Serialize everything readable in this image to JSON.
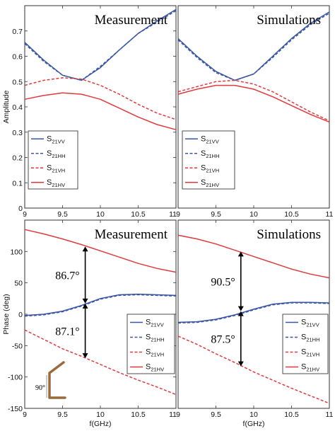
{
  "colors": {
    "blue": "#3a56a4",
    "red": "#e03a3e"
  },
  "chart_data": [
    {
      "type": "line",
      "title": "Measurement",
      "xlabel": "f(GHz)",
      "ylabel": "Amplitude",
      "xlim": [
        9,
        11
      ],
      "ylim": [
        0,
        0.8
      ],
      "xticks": [
        "9",
        "9.5",
        "10",
        "10.5",
        "11"
      ],
      "yticks": [
        "0",
        "0.1",
        "0.2",
        "0.3",
        "0.4",
        "0.5",
        "0.6",
        "0.7"
      ],
      "legend": "bottom-left",
      "series": [
        {
          "name": "S21VV",
          "base": "S",
          "sub": "21VV",
          "style": "solid",
          "color": "blue",
          "x": [
            9,
            9.25,
            9.5,
            9.75,
            10,
            10.25,
            10.5,
            10.75,
            11
          ],
          "y": [
            0.655,
            0.585,
            0.525,
            0.505,
            0.555,
            0.625,
            0.69,
            0.74,
            0.785
          ]
        },
        {
          "name": "S21HH",
          "base": "S",
          "sub": "21HH",
          "style": "dashed",
          "color": "blue",
          "x": [
            9,
            9.25,
            9.5,
            9.75,
            10,
            10.25,
            10.5,
            10.75,
            11
          ],
          "y": [
            0.65,
            0.58,
            0.525,
            0.505,
            0.56,
            0.625,
            0.69,
            0.735,
            0.78
          ]
        },
        {
          "name": "S21VH",
          "base": "S",
          "sub": "21VH",
          "style": "dashed",
          "color": "red",
          "x": [
            9,
            9.25,
            9.5,
            9.75,
            10,
            10.25,
            10.5,
            10.75,
            11
          ],
          "y": [
            0.485,
            0.505,
            0.515,
            0.51,
            0.485,
            0.45,
            0.41,
            0.375,
            0.35
          ]
        },
        {
          "name": "S21HV",
          "base": "S",
          "sub": "21HV",
          "style": "solid",
          "color": "red",
          "x": [
            9,
            9.25,
            9.5,
            9.75,
            10,
            10.25,
            10.5,
            10.75,
            11
          ],
          "y": [
            0.43,
            0.445,
            0.455,
            0.45,
            0.43,
            0.395,
            0.36,
            0.33,
            0.31
          ]
        }
      ],
      "annotations": []
    },
    {
      "type": "line",
      "title": "Simulations",
      "xlabel": "f(GHz)",
      "ylabel": "",
      "xlim": [
        9,
        11
      ],
      "ylim": [
        0,
        0.8
      ],
      "xticks": [
        "9",
        "9.5",
        "10",
        "10.5",
        "11"
      ],
      "yticks": [],
      "legend": "bottom-left",
      "series": [
        {
          "name": "S21VV",
          "base": "S",
          "sub": "21VV",
          "style": "solid",
          "color": "blue",
          "x": [
            9,
            9.25,
            9.5,
            9.75,
            10,
            10.25,
            10.5,
            10.75,
            11
          ],
          "y": [
            0.67,
            0.6,
            0.54,
            0.505,
            0.53,
            0.6,
            0.67,
            0.73,
            0.775
          ]
        },
        {
          "name": "S21HH",
          "base": "S",
          "sub": "21HH",
          "style": "dashed",
          "color": "blue",
          "x": [
            9,
            9.25,
            9.5,
            9.75,
            10,
            10.25,
            10.5,
            10.75,
            11
          ],
          "y": [
            0.665,
            0.595,
            0.535,
            0.505,
            0.53,
            0.595,
            0.665,
            0.725,
            0.77
          ]
        },
        {
          "name": "S21VH",
          "base": "S",
          "sub": "21VH",
          "style": "dashed",
          "color": "red",
          "x": [
            9,
            9.25,
            9.5,
            9.75,
            10,
            10.25,
            10.5,
            10.75,
            11
          ],
          "y": [
            0.46,
            0.48,
            0.5,
            0.505,
            0.49,
            0.46,
            0.42,
            0.38,
            0.345
          ]
        },
        {
          "name": "S21HV",
          "base": "S",
          "sub": "21HV",
          "style": "solid",
          "color": "red",
          "x": [
            9,
            9.25,
            9.5,
            9.75,
            10,
            10.25,
            10.5,
            10.75,
            11
          ],
          "y": [
            0.45,
            0.47,
            0.485,
            0.485,
            0.47,
            0.44,
            0.405,
            0.37,
            0.34
          ]
        }
      ],
      "annotations": []
    },
    {
      "type": "line",
      "title": "Measurement",
      "xlabel": "f(GHz)",
      "ylabel": "Phase (deg)",
      "xlim": [
        9,
        11
      ],
      "ylim": [
        -150,
        150
      ],
      "xticks": [
        "9",
        "9.5",
        "10",
        "10.5",
        "11"
      ],
      "yticks": [
        "-150",
        "-100",
        "-50",
        "0",
        "50",
        "100"
      ],
      "legend": "bottom-right",
      "series": [
        {
          "name": "S21VV",
          "base": "S",
          "sub": "21VV",
          "style": "solid",
          "color": "blue",
          "x": [
            9,
            9.25,
            9.5,
            9.75,
            10,
            10.25,
            10.5,
            10.75,
            11
          ],
          "y": [
            -2,
            0,
            5,
            14,
            25,
            31,
            32,
            31,
            30
          ]
        },
        {
          "name": "S21HH",
          "base": "S",
          "sub": "21HH",
          "style": "dashed",
          "color": "blue",
          "x": [
            9,
            9.25,
            9.5,
            9.75,
            10,
            10.25,
            10.5,
            10.75,
            11
          ],
          "y": [
            -3,
            -1,
            4,
            13,
            24,
            30,
            31,
            30,
            29
          ]
        },
        {
          "name": "S21VH",
          "base": "S",
          "sub": "21VH",
          "style": "dashed",
          "color": "red",
          "x": [
            9,
            9.25,
            9.5,
            9.75,
            10,
            10.25,
            10.5,
            10.75,
            11
          ],
          "y": [
            -25,
            -40,
            -55,
            -67,
            -80,
            -93,
            -105,
            -116,
            -128
          ]
        },
        {
          "name": "S21HV",
          "base": "S",
          "sub": "21HV",
          "style": "solid",
          "color": "red",
          "x": [
            9,
            9.25,
            9.5,
            9.75,
            10,
            10.25,
            10.5,
            10.75,
            11
          ],
          "y": [
            135,
            128,
            120,
            111,
            101,
            91,
            81,
            73,
            67
          ]
        }
      ],
      "annotations": [
        {
          "text": "86.7°",
          "x": 9.8,
          "y1": 108,
          "y2": 17
        },
        {
          "text": "87.1°",
          "x": 9.8,
          "y1": 17,
          "y2": -70
        }
      ],
      "inset": {
        "angle": "90°"
      }
    },
    {
      "type": "line",
      "title": "Simulations",
      "xlabel": "f(GHz)",
      "ylabel": "",
      "xlim": [
        9,
        11
      ],
      "ylim": [
        -150,
        150
      ],
      "xticks": [
        "9",
        "9.5",
        "10",
        "10.5",
        "11"
      ],
      "yticks": [],
      "legend": "bottom-right",
      "series": [
        {
          "name": "S21VV",
          "base": "S",
          "sub": "21VV",
          "style": "solid",
          "color": "blue",
          "x": [
            9,
            9.25,
            9.5,
            9.75,
            10,
            10.25,
            10.5,
            10.75,
            11
          ],
          "y": [
            -13,
            -12,
            -8,
            -1,
            8,
            16,
            19,
            19,
            18
          ]
        },
        {
          "name": "S21HH",
          "base": "S",
          "sub": "21HH",
          "style": "dashed",
          "color": "blue",
          "x": [
            9,
            9.25,
            9.5,
            9.75,
            10,
            10.25,
            10.5,
            10.75,
            11
          ],
          "y": [
            -14,
            -13,
            -9,
            -2,
            7,
            15,
            18,
            18,
            17
          ]
        },
        {
          "name": "S21VH",
          "base": "S",
          "sub": "21VH",
          "style": "dashed",
          "color": "red",
          "x": [
            9,
            9.25,
            9.5,
            9.75,
            10,
            10.25,
            10.5,
            10.75,
            11
          ],
          "y": [
            -35,
            -48,
            -63,
            -77,
            -92,
            -105,
            -118,
            -130,
            -142
          ]
        },
        {
          "name": "S21HV",
          "base": "S",
          "sub": "21HV",
          "style": "solid",
          "color": "red",
          "x": [
            9,
            9.25,
            9.5,
            9.75,
            10,
            10.25,
            10.5,
            10.75,
            11
          ],
          "y": [
            126,
            120,
            112,
            102,
            92,
            82,
            72,
            64,
            58
          ]
        }
      ],
      "annotations": [
        {
          "text": "90.5°",
          "x": 9.83,
          "y1": 100,
          "y2": 5
        },
        {
          "text": "87.5°",
          "x": 9.83,
          "y1": 5,
          "y2": -83
        }
      ]
    }
  ]
}
